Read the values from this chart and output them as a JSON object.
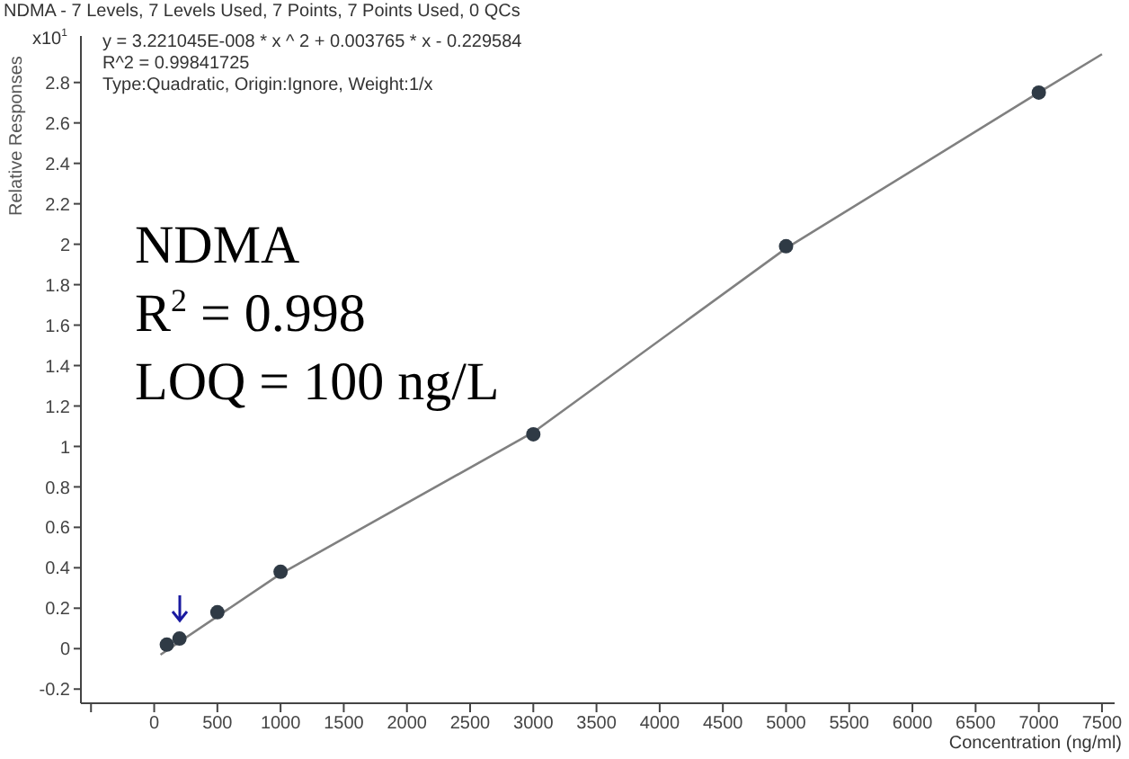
{
  "chart_data": {
    "type": "scatter",
    "title": "NDMA - 7 Levels, 7 Levels Used, 7 Points, 7 Points Used, 0 QCs",
    "xlabel": "Concentration (ng/ml)",
    "ylabel": "Relative Responses",
    "annotations": [
      "x10$^{1}$",
      "y = 3.221045E-008 * x ^ 2  + 0.003765 * x  - 0.229584",
      "R^2 = 0.99841725",
      "Type:Quadratic, Origin:Ignore, Weight:1/x",
      "NDMA",
      "R$^{2}$ = 0.998",
      "LOQ = 100 ng/L"
    ],
    "series": [
      {
        "color": "#2f3a45",
        "x": [
          100,
          200,
          500,
          1000,
          3000,
          5000,
          7000
        ],
        "values": [
          0.02,
          0.05,
          0.18,
          0.38,
          1.06,
          1.99,
          2.75
        ]
      },
      {
        "type": "line",
        "color": "#808080",
        "marker": "none",
        "x": [
          50,
          1000,
          3000,
          5000,
          7000,
          7500
        ],
        "values": [
          -0.03,
          0.37,
          1.07,
          1.98,
          2.75,
          2.94
        ]
      }
    ],
    "marker": "circle",
    "grid": false,
    "legend": false,
    "xlim": [
      -580,
      7600
    ],
    "xticks": [
      {
        "value": -500,
        "label": null
      },
      0,
      500,
      1000,
      1500,
      2000,
      2500,
      3000,
      3500,
      4000,
      4500,
      5000,
      5500,
      6000,
      6500,
      7000,
      7500
    ],
    "ylim": [
      -0.27,
      3.03
    ],
    "yticks": [
      -0.2,
      0,
      0.2,
      0.4,
      0.6,
      0.8,
      1,
      1.2,
      1.4,
      1.6,
      1.8,
      2,
      2.2,
      2.4,
      2.6,
      2.8
    ]
  }
}
